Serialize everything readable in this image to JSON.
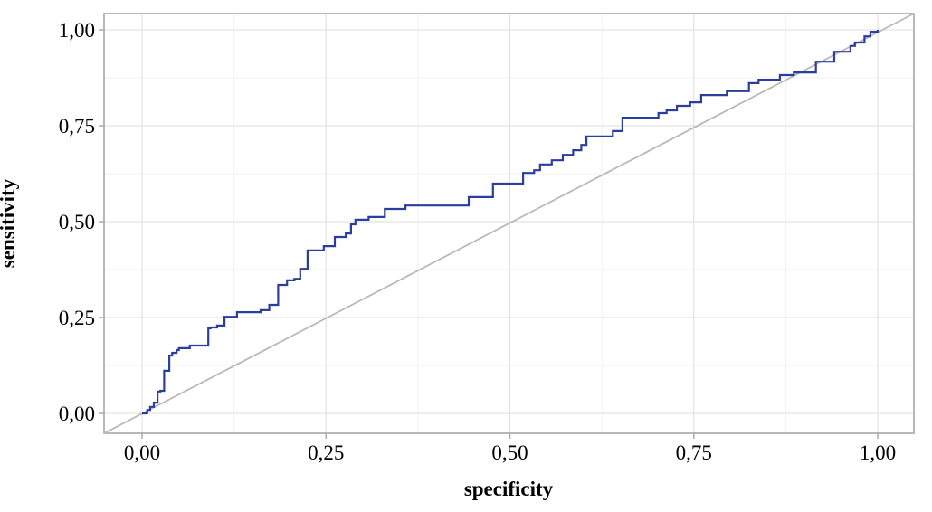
{
  "chart_data": {
    "type": "line",
    "subtype": "roc-step-curve",
    "title": "",
    "xlabel": "specificity",
    "ylabel": "sensitivity",
    "xlim": [
      0,
      1
    ],
    "ylim": [
      0,
      1
    ],
    "x_tick_values": [
      0,
      0.25,
      0.5,
      0.75,
      1
    ],
    "x_tick_labels": [
      "0,00",
      "0,25",
      "0,50",
      "0,75",
      "1,00"
    ],
    "y_tick_values": [
      0,
      0.25,
      0.5,
      0.75,
      1
    ],
    "y_tick_labels": [
      "0,00",
      "0,25",
      "0,50",
      "0,75",
      "1,00"
    ],
    "minor_tick_values": [
      0.125,
      0.375,
      0.625,
      0.875
    ],
    "grid": "major+minor",
    "legend": "none",
    "decimal_separator": ",",
    "series": [
      {
        "name": "roc-curve",
        "style": "step-hv",
        "color": "#2c3e9d",
        "width": 2.2,
        "points": [
          [
            0.0,
            0.0
          ],
          [
            0.007,
            0.009
          ],
          [
            0.011,
            0.017
          ],
          [
            0.016,
            0.028
          ],
          [
            0.021,
            0.057
          ],
          [
            0.025,
            0.059
          ],
          [
            0.03,
            0.111
          ],
          [
            0.037,
            0.151
          ],
          [
            0.041,
            0.158
          ],
          [
            0.047,
            0.165
          ],
          [
            0.05,
            0.17
          ],
          [
            0.065,
            0.177
          ],
          [
            0.09,
            0.222
          ],
          [
            0.093,
            0.224
          ],
          [
            0.102,
            0.229
          ],
          [
            0.112,
            0.252
          ],
          [
            0.129,
            0.264
          ],
          [
            0.161,
            0.269
          ],
          [
            0.173,
            0.283
          ],
          [
            0.185,
            0.335
          ],
          [
            0.197,
            0.347
          ],
          [
            0.207,
            0.351
          ],
          [
            0.215,
            0.377
          ],
          [
            0.225,
            0.425
          ],
          [
            0.247,
            0.436
          ],
          [
            0.262,
            0.46
          ],
          [
            0.277,
            0.469
          ],
          [
            0.284,
            0.493
          ],
          [
            0.29,
            0.505
          ],
          [
            0.308,
            0.512
          ],
          [
            0.33,
            0.533
          ],
          [
            0.358,
            0.542
          ],
          [
            0.444,
            0.564
          ],
          [
            0.477,
            0.599
          ],
          [
            0.518,
            0.627
          ],
          [
            0.533,
            0.634
          ],
          [
            0.541,
            0.649
          ],
          [
            0.557,
            0.66
          ],
          [
            0.572,
            0.674
          ],
          [
            0.586,
            0.686
          ],
          [
            0.597,
            0.7
          ],
          [
            0.604,
            0.722
          ],
          [
            0.64,
            0.736
          ],
          [
            0.653,
            0.771
          ],
          [
            0.702,
            0.783
          ],
          [
            0.713,
            0.79
          ],
          [
            0.727,
            0.802
          ],
          [
            0.745,
            0.811
          ],
          [
            0.76,
            0.83
          ],
          [
            0.795,
            0.84
          ],
          [
            0.825,
            0.861
          ],
          [
            0.838,
            0.87
          ],
          [
            0.867,
            0.882
          ],
          [
            0.886,
            0.889
          ],
          [
            0.916,
            0.917
          ],
          [
            0.941,
            0.943
          ],
          [
            0.963,
            0.958
          ],
          [
            0.969,
            0.967
          ],
          [
            0.982,
            0.983
          ],
          [
            0.99,
            0.995
          ],
          [
            1.0,
            1.0
          ]
        ]
      }
    ],
    "reference_line": {
      "name": "chance-diagonal",
      "from": [
        0,
        0
      ],
      "to": [
        1,
        1
      ],
      "spans_full_panel": true,
      "color": "#b9b9b9",
      "width": 1.8
    },
    "colors": {
      "grid_major": "#e3e3e3",
      "grid_minor": "#f1f1f1",
      "panel_border": "#a6a6a6",
      "tick": "#a6a6a6",
      "text": "#000000",
      "background": "#ffffff"
    }
  }
}
